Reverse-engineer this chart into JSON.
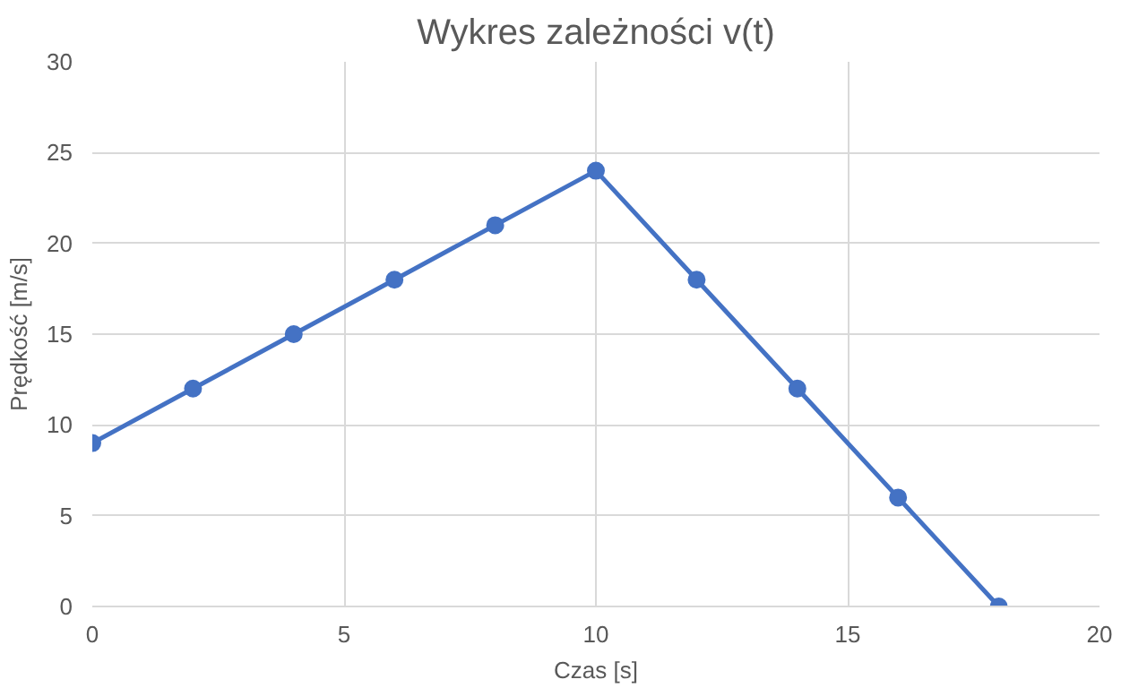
{
  "chart_data": {
    "type": "line",
    "title": "Wykres zależności v(t)",
    "xlabel": "Czas [s]",
    "ylabel": "Prędkość [m/s]",
    "x": [
      0,
      2,
      4,
      6,
      8,
      10,
      12,
      14,
      16,
      18
    ],
    "series": [
      {
        "color": "#4472c4",
        "values": [
          9,
          12,
          15,
          18,
          21,
          24,
          18,
          12,
          6,
          0
        ]
      }
    ],
    "xlim": [
      0,
      20
    ],
    "xticks": [
      0,
      5,
      10,
      15,
      20
    ],
    "ylim": [
      0,
      30
    ],
    "yticks": [
      0,
      5,
      10,
      15,
      20,
      25,
      30
    ],
    "grid": true,
    "marker": "circle",
    "line_style": "solid"
  }
}
